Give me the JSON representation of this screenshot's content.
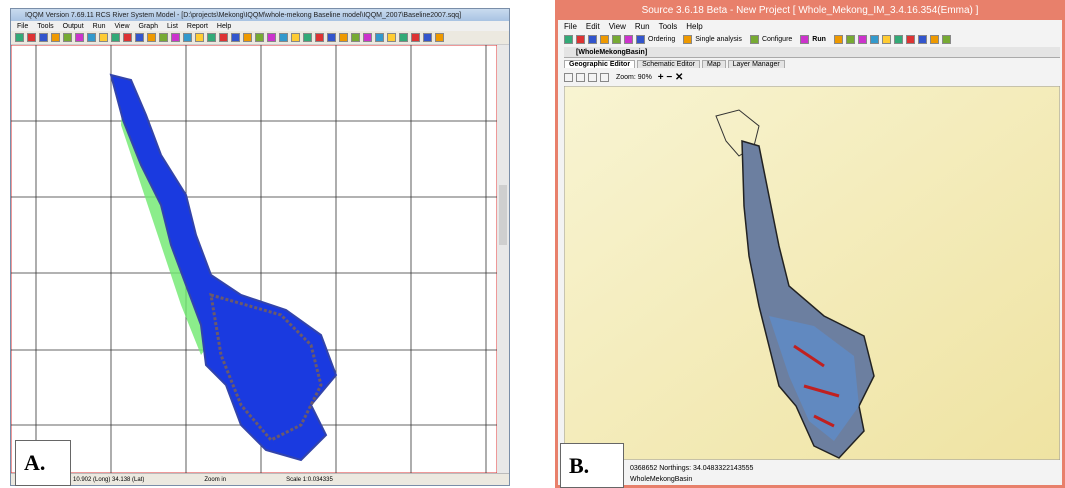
{
  "panels": [
    {
      "label": "A.",
      "title": "IQQM Version 7.69.11 RCS River System Model - [D:\\projects\\Mekong\\IQQM\\whole-mekong Baseline model\\IQQM_2007\\Baseline2007.sqq]",
      "menu": [
        "File",
        "Tools",
        "Output",
        "Run",
        "View",
        "Graph",
        "List",
        "Report",
        "Help"
      ],
      "status": [
        "10.902 (Long)  34.138 (Lat)",
        "Zoom in",
        "Scale 1:0.034335"
      ]
    },
    {
      "label": "B.",
      "title": "Source 3.6.18 Beta - New Project [ Whole_Mekong_IM_3.4.16.354(Emma) ]",
      "menu": [
        "File",
        "Edit",
        "View",
        "Run",
        "Tools",
        "Help"
      ],
      "toolbar": [
        "Ordering",
        "Single analysis",
        "Configure",
        "Run"
      ],
      "tab": "[WholeMekongBasin]",
      "subtabs": [
        "Geographic Editor",
        "Schematic Editor",
        "Map",
        "Layer Manager"
      ],
      "zoom": "Zoom: 90%",
      "status": [
        "0368652 Northings: 34.0483322143555",
        "WholeMekongBasin"
      ]
    }
  ]
}
